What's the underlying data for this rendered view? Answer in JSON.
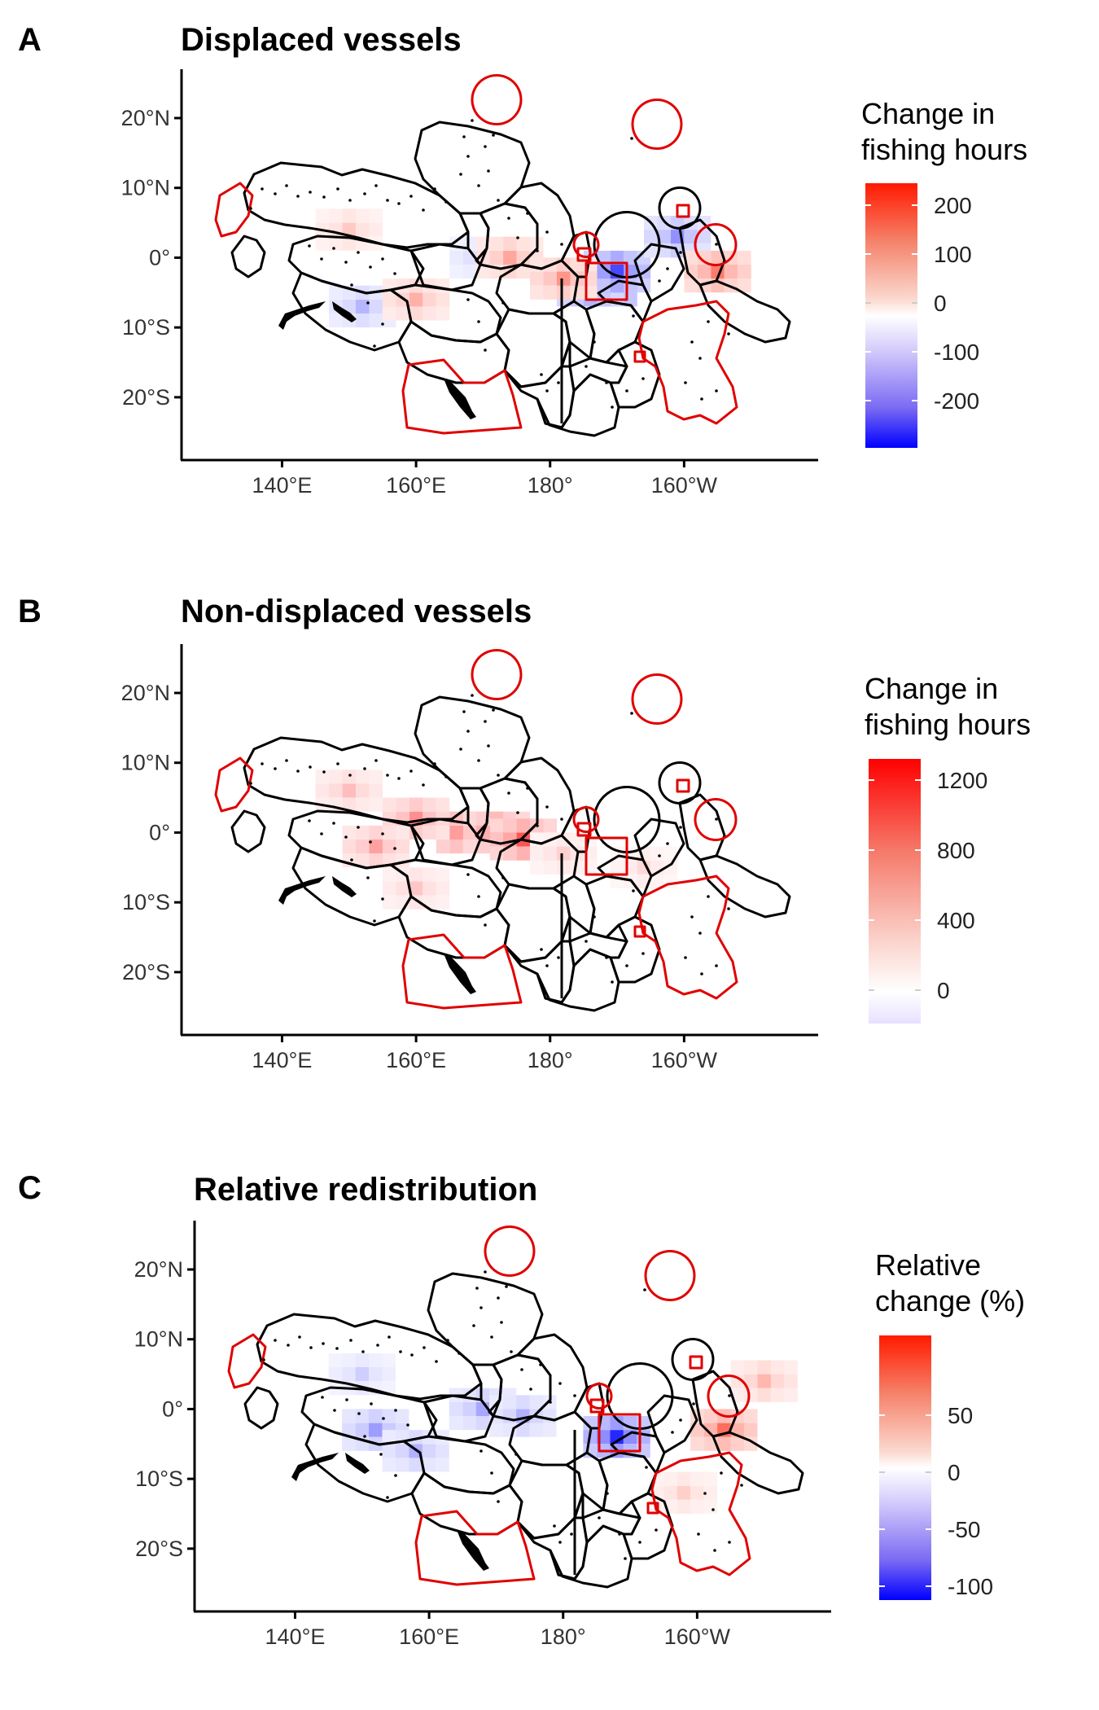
{
  "figure": {
    "panels": [
      {
        "letter": "A",
        "title": "Displaced vessels",
        "legend": {
          "title_line1": "Change in",
          "title_line2": "fishing hours",
          "ticks": [
            "200",
            "100",
            "0",
            "-100",
            "-200"
          ],
          "scale": "diverging",
          "colors": [
            "#ff0000",
            "#ffffff",
            "#0000ff"
          ]
        }
      },
      {
        "letter": "B",
        "title": "Non-displaced vessels",
        "legend": {
          "title_line1": "Change in",
          "title_line2": "fishing hours",
          "ticks": [
            "1200",
            "800",
            "400",
            "0"
          ],
          "scale": "sequential",
          "colors": [
            "#ff0000",
            "#ffffff",
            "#e8e0ff"
          ]
        }
      },
      {
        "letter": "C",
        "title": "Relative redistribution",
        "legend": {
          "title_line1": "Relative",
          "title_line2": "change (%)",
          "ticks": [
            "50",
            "0",
            "-50",
            "-100"
          ],
          "scale": "diverging",
          "colors": [
            "#ff0000",
            "#ffffff",
            "#0000ff"
          ]
        }
      }
    ],
    "x_tick_labels": [
      "140°E",
      "160°E",
      "180°",
      "160°W"
    ],
    "y_tick_labels": [
      "20°N",
      "10°N",
      "0°",
      "10°S",
      "20°S"
    ],
    "colors": {
      "eez_boundary": "#000000",
      "mpa_boundary": "#e00000",
      "increase": "#ff0000",
      "decrease": "#0000ff"
    }
  },
  "chart_data": [
    {
      "type": "heatmap",
      "title": "Displaced vessels",
      "legend_title": "Change in fishing hours",
      "colorbar_ticks": [
        200,
        100,
        0,
        -100,
        -200
      ],
      "colorbar_range": [
        -280,
        260
      ],
      "xlim": [
        125,
        220
      ],
      "ylim": [
        -29,
        27
      ],
      "x_ticks": [
        140,
        160,
        180,
        200
      ],
      "y_ticks": [
        20,
        10,
        0,
        -10,
        -20
      ],
      "projection_note": "longitude degrees east (200 = 160°W)",
      "cells": [
        {
          "lon": 188,
          "lat": -4,
          "value": -250
        },
        {
          "lon": 186,
          "lat": -4,
          "value": -180
        },
        {
          "lon": 190,
          "lat": -2,
          "value": -200
        },
        {
          "lon": 152,
          "lat": -7,
          "value": -80
        },
        {
          "lon": 170,
          "lat": 0,
          "value": -60
        },
        {
          "lon": 199,
          "lat": 3,
          "value": -120
        },
        {
          "lon": 205,
          "lat": -2,
          "value": 150
        },
        {
          "lon": 174,
          "lat": 0,
          "value": 100
        },
        {
          "lon": 160,
          "lat": -6,
          "value": 90
        },
        {
          "lon": 150,
          "lat": 4,
          "value": 60
        },
        {
          "lon": 182,
          "lat": -3,
          "value": 120
        }
      ]
    },
    {
      "type": "heatmap",
      "title": "Non-displaced vessels",
      "legend_title": "Change in fishing hours",
      "colorbar_ticks": [
        1200,
        800,
        400,
        0
      ],
      "colorbar_range": [
        -100,
        1350
      ],
      "xlim": [
        125,
        220
      ],
      "ylim": [
        -29,
        27
      ],
      "x_ticks": [
        140,
        160,
        180,
        200
      ],
      "y_ticks": [
        20,
        10,
        0,
        -10,
        -20
      ],
      "cells": [
        {
          "lon": 168,
          "lat": 0,
          "value": 1000
        },
        {
          "lon": 172,
          "lat": 0,
          "value": 800
        },
        {
          "lon": 176,
          "lat": -1,
          "value": 900
        },
        {
          "lon": 160,
          "lat": 2,
          "value": 600
        },
        {
          "lon": 154,
          "lat": -2,
          "value": 500
        },
        {
          "lon": 150,
          "lat": 6,
          "value": 350
        },
        {
          "lon": 160,
          "lat": -8,
          "value": 300
        },
        {
          "lon": 182,
          "lat": -3,
          "value": 250
        },
        {
          "lon": 194,
          "lat": -5,
          "value": 200
        }
      ]
    },
    {
      "type": "heatmap",
      "title": "Relative redistribution",
      "legend_title": "Relative change (%)",
      "colorbar_ticks": [
        50,
        0,
        -50,
        -100
      ],
      "colorbar_range": [
        -130,
        95
      ],
      "xlim": [
        125,
        220
      ],
      "ylim": [
        -29,
        27
      ],
      "x_ticks": [
        140,
        160,
        180,
        200
      ],
      "y_ticks": [
        20,
        10,
        0,
        -10,
        -20
      ],
      "cells": [
        {
          "lon": 188,
          "lat": -4,
          "value": -110
        },
        {
          "lon": 152,
          "lat": -3,
          "value": -50
        },
        {
          "lon": 158,
          "lat": -6,
          "value": -40
        },
        {
          "lon": 168,
          "lat": 0,
          "value": -45
        },
        {
          "lon": 174,
          "lat": -1,
          "value": -40
        },
        {
          "lon": 150,
          "lat": 5,
          "value": -25
        },
        {
          "lon": 204,
          "lat": -3,
          "value": 60
        },
        {
          "lon": 210,
          "lat": 4,
          "value": 30
        },
        {
          "lon": 198,
          "lat": -12,
          "value": 20
        }
      ]
    }
  ]
}
